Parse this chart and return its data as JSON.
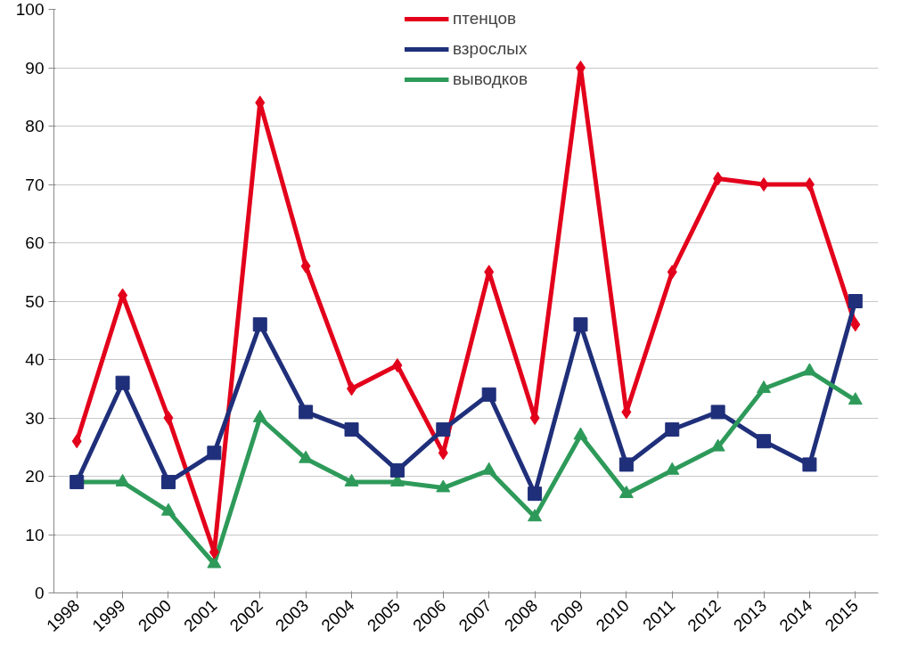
{
  "chart_data": {
    "type": "line",
    "categories": [
      "1998",
      "1999",
      "2000",
      "2001",
      "2002",
      "2003",
      "2004",
      "2005",
      "2006",
      "2007",
      "2008",
      "2009",
      "2010",
      "2011",
      "2012",
      "2013",
      "2014",
      "2015"
    ],
    "series": [
      {
        "name": "птенцов",
        "color": "#e3001b",
        "marker": "diamond",
        "values": [
          26,
          51,
          30,
          7,
          84,
          56,
          35,
          39,
          24,
          55,
          30,
          90,
          31,
          55,
          71,
          70,
          70,
          46
        ]
      },
      {
        "name": "взрослых",
        "color": "#1f2f7a",
        "marker": "square",
        "values": [
          19,
          36,
          19,
          24,
          46,
          31,
          28,
          21,
          28,
          34,
          17,
          46,
          22,
          28,
          31,
          26,
          22,
          50
        ]
      },
      {
        "name": "выводков",
        "color": "#2e9a5a",
        "marker": "triangle",
        "values": [
          19,
          19,
          14,
          5,
          30,
          23,
          19,
          19,
          18,
          21,
          13,
          27,
          17,
          21,
          25,
          35,
          38,
          33
        ]
      }
    ],
    "ylim": [
      0,
      100
    ],
    "yticks": [
      0,
      10,
      20,
      30,
      40,
      50,
      60,
      70,
      80,
      90,
      100
    ],
    "grid": "y",
    "legend": "top",
    "line_style": "solid"
  }
}
